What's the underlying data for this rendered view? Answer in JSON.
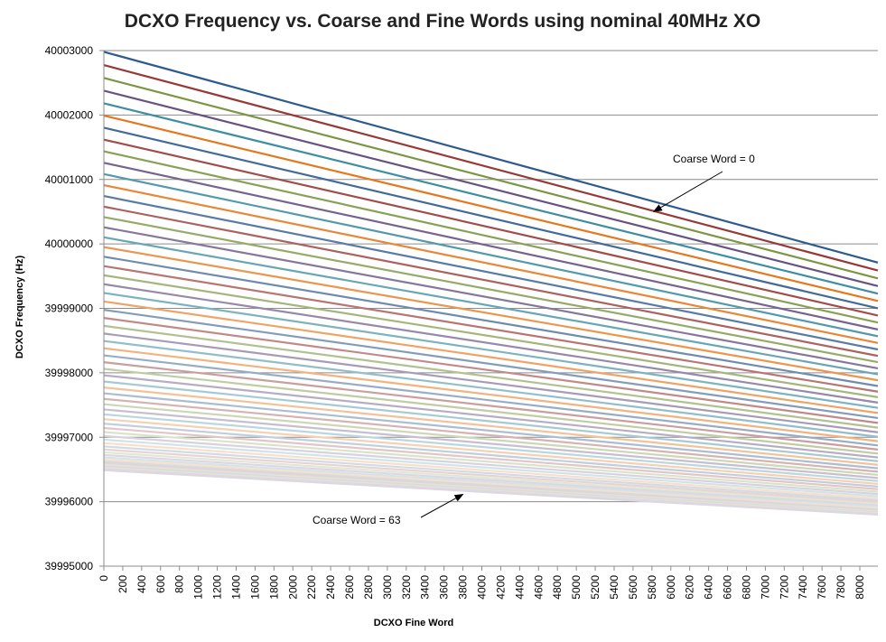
{
  "chart_data": {
    "type": "line",
    "title": "DCXO Frequency vs. Coarse and Fine Words using nominal 40MHz XO",
    "xlabel": "DCXO Fine Word",
    "ylabel": "DCXO Frequency (Hz)",
    "xlim": [
      0,
      8191
    ],
    "ylim": [
      39995000,
      40003000
    ],
    "x_ticks": [
      0,
      200,
      400,
      600,
      800,
      1000,
      1200,
      1400,
      1600,
      1800,
      2000,
      2200,
      2400,
      2600,
      2800,
      3000,
      3200,
      3400,
      3600,
      3800,
      4000,
      4200,
      4400,
      4600,
      4800,
      5000,
      5200,
      5400,
      5600,
      5800,
      6000,
      6200,
      6400,
      6600,
      6800,
      7000,
      7200,
      7400,
      7600,
      7800,
      8000
    ],
    "y_ticks": [
      39995000,
      39996000,
      39997000,
      39998000,
      39999000,
      40000000,
      40001000,
      40002000,
      40003000
    ],
    "grid": "horizontal",
    "series_count": 64,
    "series_note": "one line per Coarse Word 0..63, linear in Fine Word",
    "series_endpoints": {
      "coarse_0": {
        "x": [
          0,
          8191
        ],
        "y": [
          40002980,
          39999710
        ]
      },
      "coarse_63": {
        "x": [
          0,
          8191
        ],
        "y": [
          39996490,
          39995800
        ]
      }
    },
    "palette": [
      "#2e5b8e",
      "#943634",
      "#76923c",
      "#5f497a",
      "#31859c",
      "#e36c0a"
    ],
    "annotations": [
      {
        "text": "Coarse Word  = 0",
        "points_to": {
          "x": 5800,
          "y": 40000530
        }
      },
      {
        "text": "Coarse Word = 63",
        "points_to": {
          "x": 3800,
          "y": 39996100
        }
      }
    ]
  }
}
